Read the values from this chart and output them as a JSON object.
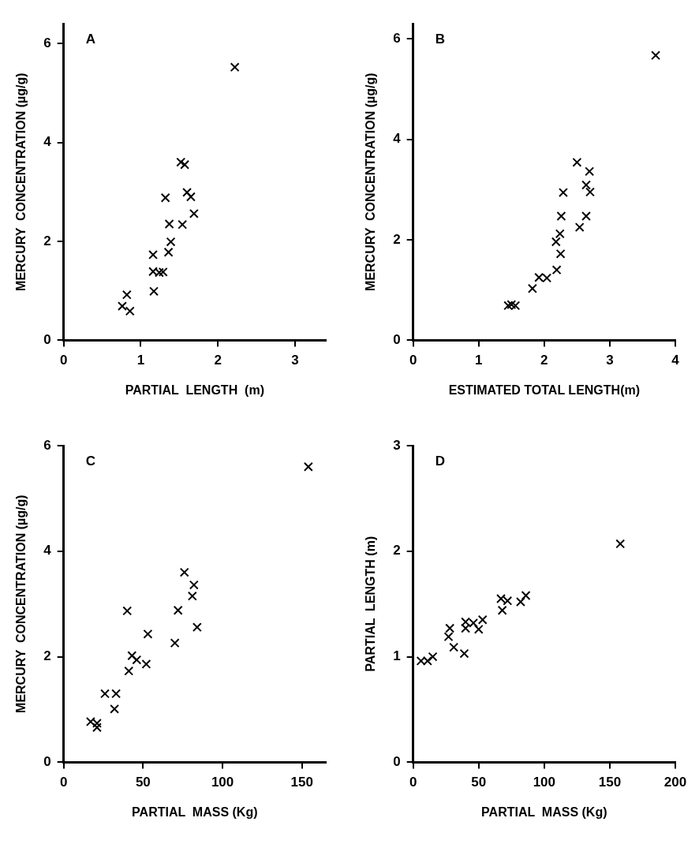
{
  "chart_data": [
    {
      "type": "scatter",
      "title": "A",
      "xlabel": "PARTIAL  LENGTH  (m)",
      "ylabel": "MERCURY  CONCENTRATION (µg/g)",
      "marker": "cross",
      "xlim": [
        0,
        3.4
      ],
      "ylim": [
        0,
        6.4
      ],
      "xticks": [
        0,
        1,
        2,
        3
      ],
      "yticks": [
        0,
        2,
        4,
        6
      ],
      "series": [
        {
          "color": "#000000",
          "x": [
            2.22,
            1.52,
            1.57,
            1.6,
            1.65,
            1.69,
            1.54,
            1.32,
            1.37,
            1.39,
            1.36,
            1.16,
            1.16,
            1.24,
            1.29,
            1.17,
            0.82,
            0.76,
            0.86
          ],
          "values": [
            5.52,
            3.6,
            3.55,
            2.99,
            2.9,
            2.56,
            2.34,
            2.88,
            2.35,
            1.99,
            1.78,
            1.73,
            1.39,
            1.37,
            1.38,
            0.99,
            0.92,
            0.69,
            0.59
          ]
        }
      ]
    },
    {
      "type": "scatter",
      "title": "B",
      "xlabel": "ESTIMATED TOTAL LENGTH(m)",
      "ylabel": "MERCURY  CONCENTRATION (µg/g)",
      "marker": "cross",
      "xlim": [
        0,
        4
      ],
      "ylim": [
        0,
        6.3
      ],
      "xticks": [
        0,
        1,
        2,
        3,
        4
      ],
      "yticks": [
        0,
        2,
        4,
        6
      ],
      "series": [
        {
          "color": "#000000",
          "x": [
            3.7,
            2.5,
            2.69,
            2.64,
            2.7,
            2.29,
            2.26,
            2.64,
            2.54,
            2.24,
            2.18,
            2.25,
            2.19,
            2.04,
            1.92,
            1.82,
            1.5,
            1.56,
            1.45
          ],
          "values": [
            5.67,
            3.54,
            3.36,
            3.09,
            2.95,
            2.94,
            2.47,
            2.47,
            2.25,
            2.12,
            1.96,
            1.72,
            1.4,
            1.24,
            1.25,
            1.03,
            0.71,
            0.69,
            0.69
          ]
        }
      ]
    },
    {
      "type": "scatter",
      "title": "C",
      "xlabel": "PARTIAL  MASS (Kg)",
      "ylabel": "MERCURY  CONCENTRATION (µg/g)",
      "marker": "cross",
      "xlim": [
        0,
        165
      ],
      "ylim": [
        0,
        6
      ],
      "xticks": [
        0,
        50,
        100,
        150
      ],
      "yticks": [
        0,
        2,
        4,
        6
      ],
      "series": [
        {
          "color": "#000000",
          "x": [
            154,
            76,
            82,
            81,
            72,
            84,
            70,
            40,
            53,
            43,
            46,
            52,
            41,
            26,
            33,
            32,
            17,
            21,
            21
          ],
          "values": [
            5.6,
            3.6,
            3.36,
            3.15,
            2.88,
            2.56,
            2.26,
            2.87,
            2.43,
            2.02,
            1.94,
            1.86,
            1.73,
            1.3,
            1.3,
            1.01,
            0.77,
            0.74,
            0.66
          ]
        }
      ]
    },
    {
      "type": "scatter",
      "title": "D",
      "xlabel": "PARTIAL  MASS (Kg)",
      "ylabel": "PARTIAL  LENGTH (m)",
      "marker": "cross",
      "xlim": [
        0,
        200
      ],
      "ylim": [
        0,
        3
      ],
      "xticks": [
        0,
        50,
        100,
        150,
        200
      ],
      "yticks": [
        0,
        1,
        2,
        3
      ],
      "series": [
        {
          "color": "#000000",
          "x": [
            158,
            86,
            82,
            72,
            67,
            68,
            53,
            50,
            46,
            40,
            40,
            28,
            27,
            31,
            39,
            15,
            11,
            6
          ],
          "values": [
            2.07,
            1.58,
            1.52,
            1.53,
            1.55,
            1.44,
            1.35,
            1.26,
            1.32,
            1.33,
            1.27,
            1.27,
            1.19,
            1.09,
            1.03,
            1.0,
            0.96,
            0.96
          ]
        }
      ]
    }
  ]
}
